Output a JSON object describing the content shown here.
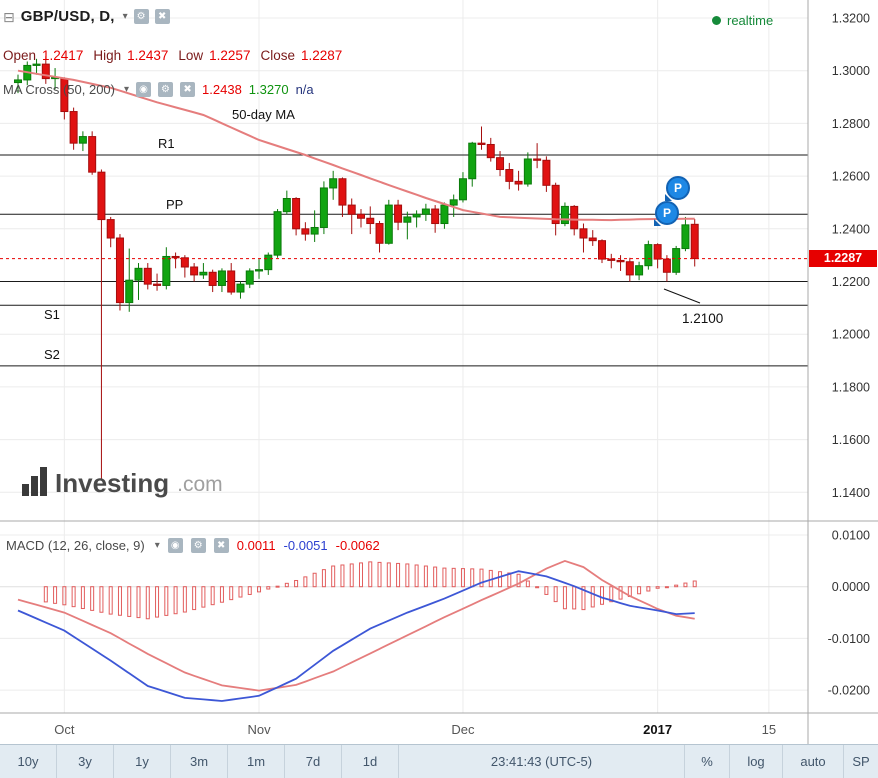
{
  "header": {
    "symbol_title": "GBP/USD, D,",
    "realtime_label": "realtime",
    "ohlc": {
      "open_label": "Open",
      "open": "1.2417",
      "high_label": "High",
      "high": "1.2437",
      "low_label": "Low",
      "low": "1.2257",
      "close_label": "Close",
      "close": "1.2287"
    },
    "ma_cross": {
      "label": "MA Cross (50, 200)",
      "value1": "1.2438",
      "value2": "1.3270",
      "value3": "n/a"
    }
  },
  "annotations": {
    "ma_label": "50-day MA",
    "r1": "R1",
    "pp": "PP",
    "s1": "S1",
    "s2": "S2",
    "price_callout": "1.2100",
    "last_price": "1.2287"
  },
  "markers": {
    "label": "P"
  },
  "watermark": {
    "name": "Investing",
    "tld": ".com"
  },
  "macd_header": {
    "label": "MACD (12, 26, close, 9)",
    "hist": "0.0011",
    "macd": "-0.0051",
    "signal": "-0.0062"
  },
  "toolbar": {
    "ranges": [
      "10y",
      "3y",
      "1y",
      "3m",
      "1m",
      "7d",
      "1d"
    ],
    "clock": "23:41:43 (UTC-5)",
    "pct": "%",
    "log": "log",
    "auto": "auto",
    "sp": "SP"
  },
  "chart_data": {
    "type": "candlestick",
    "symbol": "GBP/USD",
    "interval": "D",
    "legend_ohlc": {
      "open": 1.2417,
      "high": 1.2437,
      "low": 1.2257,
      "close": 1.2287
    },
    "last_price": 1.2287,
    "price_axis": {
      "ticks": [
        1.32,
        1.3,
        1.28,
        1.26,
        1.24,
        1.22,
        1.2,
        1.18,
        1.16,
        1.14
      ]
    },
    "macd_axis": {
      "ticks": [
        0.01,
        0.0,
        -0.01,
        -0.02
      ]
    },
    "x_ticks": [
      {
        "i": 5,
        "label": "Oct"
      },
      {
        "i": 26,
        "label": "Nov"
      },
      {
        "i": 48,
        "label": "Dec"
      },
      {
        "i": 69,
        "label": "2017",
        "bold": true
      },
      {
        "i": 81,
        "label": "15"
      }
    ],
    "pivots": [
      {
        "label": "R1",
        "price": 1.268
      },
      {
        "label": "PP",
        "price": 1.2455
      },
      {
        "label": "",
        "price": 1.22
      },
      {
        "label": "S1",
        "price": 1.211
      },
      {
        "label": "S2",
        "price": 1.188
      }
    ],
    "support_callout": 1.21,
    "ma_cross_values": {
      "ma50": 1.2438,
      "ma200": 1.327
    },
    "macd_values": {
      "hist": 0.0011,
      "macd": -0.0051,
      "signal": -0.0062
    },
    "candles": [
      [
        1.2955,
        1.2985,
        1.2915,
        1.2965
      ],
      [
        1.2965,
        1.3035,
        1.2945,
        1.302
      ],
      [
        1.302,
        1.3045,
        1.2985,
        1.3025
      ],
      [
        1.3025,
        1.3055,
        1.295,
        1.297
      ],
      [
        1.297,
        1.301,
        1.293,
        1.2975
      ],
      [
        1.297,
        1.2975,
        1.2815,
        1.2845
      ],
      [
        1.2845,
        1.286,
        1.27,
        1.2725
      ],
      [
        1.2725,
        1.277,
        1.2695,
        1.275
      ],
      [
        1.275,
        1.277,
        1.2605,
        1.2615
      ],
      [
        1.2615,
        1.2625,
        1.145,
        1.2435
      ],
      [
        1.2435,
        1.2445,
        1.233,
        1.2365
      ],
      [
        1.2365,
        1.238,
        1.209,
        1.212
      ],
      [
        1.212,
        1.2325,
        1.2085,
        1.2205
      ],
      [
        1.2205,
        1.227,
        1.213,
        1.225
      ],
      [
        1.225,
        1.227,
        1.217,
        1.219
      ],
      [
        1.219,
        1.223,
        1.2165,
        1.2185
      ],
      [
        1.2185,
        1.233,
        1.217,
        1.2295
      ],
      [
        1.2295,
        1.231,
        1.225,
        1.229
      ],
      [
        1.229,
        1.23,
        1.2215,
        1.2255
      ],
      [
        1.2255,
        1.227,
        1.22,
        1.2225
      ],
      [
        1.2225,
        1.227,
        1.221,
        1.2235
      ],
      [
        1.2235,
        1.2245,
        1.216,
        1.2185
      ],
      [
        1.2185,
        1.225,
        1.216,
        1.224
      ],
      [
        1.224,
        1.227,
        1.215,
        1.216
      ],
      [
        1.216,
        1.22,
        1.2135,
        1.219
      ],
      [
        1.219,
        1.225,
        1.2175,
        1.224
      ],
      [
        1.224,
        1.2285,
        1.221,
        1.2245
      ],
      [
        1.2245,
        1.231,
        1.2225,
        1.23
      ],
      [
        1.23,
        1.2475,
        1.229,
        1.2465
      ],
      [
        1.2465,
        1.2545,
        1.2455,
        1.2515
      ],
      [
        1.2515,
        1.252,
        1.2375,
        1.24
      ],
      [
        1.24,
        1.2425,
        1.2355,
        1.238
      ],
      [
        1.238,
        1.247,
        1.235,
        1.2405
      ],
      [
        1.2405,
        1.258,
        1.238,
        1.2555
      ],
      [
        1.2555,
        1.262,
        1.251,
        1.259
      ],
      [
        1.259,
        1.2595,
        1.2445,
        1.249
      ],
      [
        1.249,
        1.2515,
        1.238,
        1.2455
      ],
      [
        1.2455,
        1.2475,
        1.2405,
        1.244
      ],
      [
        1.244,
        1.2485,
        1.238,
        1.242
      ],
      [
        1.242,
        1.243,
        1.231,
        1.2345
      ],
      [
        1.2345,
        1.251,
        1.234,
        1.249
      ],
      [
        1.249,
        1.251,
        1.2395,
        1.2425
      ],
      [
        1.2425,
        1.2465,
        1.236,
        1.2445
      ],
      [
        1.2445,
        1.247,
        1.2405,
        1.2455
      ],
      [
        1.2455,
        1.2495,
        1.243,
        1.2475
      ],
      [
        1.2475,
        1.249,
        1.2385,
        1.242
      ],
      [
        1.242,
        1.25,
        1.24,
        1.249
      ],
      [
        1.249,
        1.253,
        1.2445,
        1.251
      ],
      [
        1.251,
        1.2615,
        1.25,
        1.259
      ],
      [
        1.259,
        1.273,
        1.256,
        1.2725
      ],
      [
        1.2725,
        1.2788,
        1.27,
        1.272
      ],
      [
        1.272,
        1.2745,
        1.2655,
        1.267
      ],
      [
        1.267,
        1.2695,
        1.26,
        1.2625
      ],
      [
        1.2625,
        1.265,
        1.255,
        1.258
      ],
      [
        1.258,
        1.262,
        1.2545,
        1.257
      ],
      [
        1.257,
        1.269,
        1.256,
        1.2665
      ],
      [
        1.2665,
        1.2725,
        1.263,
        1.266
      ],
      [
        1.266,
        1.2675,
        1.254,
        1.2565
      ],
      [
        1.2565,
        1.2575,
        1.2375,
        1.242
      ],
      [
        1.242,
        1.25,
        1.241,
        1.2485
      ],
      [
        1.2485,
        1.249,
        1.2375,
        1.24
      ],
      [
        1.24,
        1.242,
        1.231,
        1.2365
      ],
      [
        1.2365,
        1.2395,
        1.2335,
        1.2355
      ],
      [
        1.2355,
        1.236,
        1.227,
        1.2285
      ],
      [
        1.2285,
        1.2305,
        1.225,
        1.228
      ],
      [
        1.228,
        1.23,
        1.224,
        1.2275
      ],
      [
        1.2275,
        1.229,
        1.22,
        1.2225
      ],
      [
        1.2225,
        1.2275,
        1.2205,
        1.226
      ],
      [
        1.226,
        1.2355,
        1.2245,
        1.234
      ],
      [
        1.234,
        1.2345,
        1.225,
        1.2285
      ],
      [
        1.2285,
        1.23,
        1.22,
        1.2235
      ],
      [
        1.2235,
        1.2335,
        1.2225,
        1.2325
      ],
      [
        1.2325,
        1.2445,
        1.2315,
        1.2415
      ],
      [
        1.2417,
        1.2437,
        1.2257,
        1.2287
      ]
    ],
    "ma50_waypoints": [
      [
        0,
        1.3
      ],
      [
        6,
        1.2965
      ],
      [
        10,
        1.2935
      ],
      [
        15,
        1.288
      ],
      [
        20,
        1.2832
      ],
      [
        26,
        1.2737
      ],
      [
        31,
        1.268
      ],
      [
        34,
        1.2642
      ],
      [
        40,
        1.2566
      ],
      [
        44,
        1.2517
      ],
      [
        48,
        1.2471
      ],
      [
        52,
        1.2445
      ],
      [
        58,
        1.2436
      ],
      [
        64,
        1.2433
      ],
      [
        68,
        1.2437
      ],
      [
        73,
        1.2438
      ]
    ],
    "macd_waypoints": [
      [
        0,
        -0.0046
      ],
      [
        5,
        -0.0085
      ],
      [
        10,
        -0.0143
      ],
      [
        14,
        -0.0192
      ],
      [
        18,
        -0.0215
      ],
      [
        22,
        -0.0221
      ],
      [
        26,
        -0.0211
      ],
      [
        30,
        -0.0178
      ],
      [
        34,
        -0.0124
      ],
      [
        38,
        -0.0081
      ],
      [
        42,
        -0.005
      ],
      [
        46,
        -0.0023
      ],
      [
        50,
        0.0008
      ],
      [
        54,
        0.003
      ],
      [
        57,
        0.002
      ],
      [
        60,
        0.0001
      ],
      [
        63,
        -0.0021
      ],
      [
        66,
        -0.0037
      ],
      [
        69,
        -0.0046
      ],
      [
        71,
        -0.0053
      ],
      [
        73,
        -0.0051
      ]
    ],
    "signal_waypoints": [
      [
        0,
        -0.0025
      ],
      [
        5,
        -0.005
      ],
      [
        10,
        -0.009
      ],
      [
        14,
        -0.013
      ],
      [
        18,
        -0.0166
      ],
      [
        22,
        -0.0191
      ],
      [
        26,
        -0.0201
      ],
      [
        30,
        -0.019
      ],
      [
        34,
        -0.0164
      ],
      [
        38,
        -0.0129
      ],
      [
        42,
        -0.0094
      ],
      [
        46,
        -0.0059
      ],
      [
        50,
        -0.0026
      ],
      [
        54,
        0.0006
      ],
      [
        57,
        0.0035
      ],
      [
        59,
        0.005
      ],
      [
        61,
        0.0038
      ],
      [
        63,
        0.0013
      ],
      [
        66,
        -0.0018
      ],
      [
        69,
        -0.0043
      ],
      [
        71,
        -0.0056
      ],
      [
        73,
        -0.0062
      ]
    ],
    "colors": {
      "up": "#11a411",
      "up_border": "#0b7a0b",
      "down": "#e01212",
      "down_border": "#a50d0d",
      "ma50": "#e57d7d",
      "macd_line": "#3d57d6",
      "signal_line": "#e57d7d",
      "hist": "#e25d5d",
      "pivot": "#1a1a1a",
      "last_price_line": "#e60000",
      "badge_bg": "#e60000",
      "grid": "#ececec"
    }
  }
}
